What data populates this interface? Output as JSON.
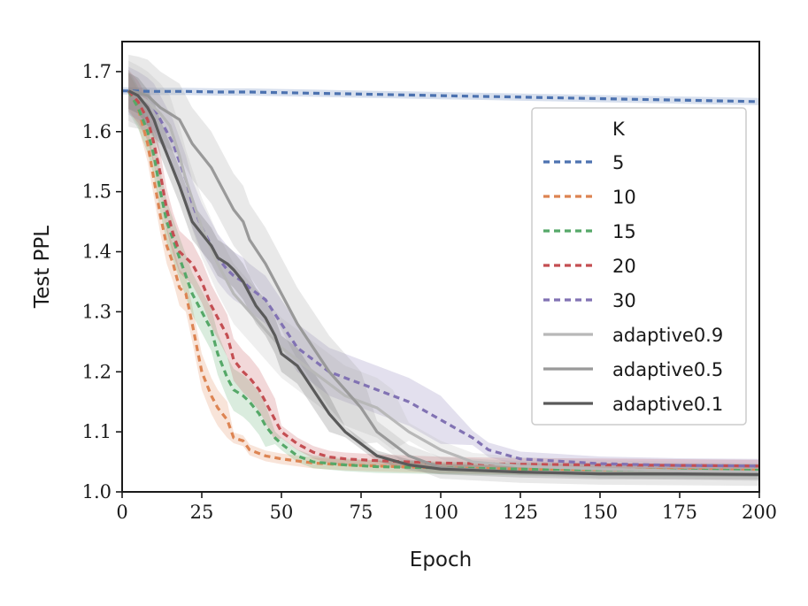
{
  "chart_data": {
    "type": "line",
    "xlabel": "Epoch",
    "ylabel": "Test PPL",
    "xlim": [
      0,
      200
    ],
    "ylim": [
      1.0,
      1.75
    ],
    "xticks": [
      0,
      25,
      50,
      75,
      100,
      125,
      150,
      175,
      200
    ],
    "xtick_labels": [
      "0",
      "25",
      "50",
      "75",
      "100",
      "125",
      "150",
      "175",
      "200"
    ],
    "yticks": [
      1.0,
      1.1,
      1.2,
      1.3,
      1.4,
      1.5,
      1.6,
      1.7
    ],
    "ytick_labels": [
      "1.0",
      "1.1",
      "1.2",
      "1.3",
      "1.4",
      "1.5",
      "1.6",
      "1.7"
    ],
    "legend": {
      "title": "K",
      "placement": "upper-right"
    },
    "series": [
      {
        "name": "5",
        "style": "dashed",
        "color": "#4c72b0",
        "x": [
          0,
          10,
          20,
          30,
          40,
          50,
          60,
          70,
          80,
          90,
          100,
          110,
          120,
          140,
          160,
          180,
          200
        ],
        "values": [
          1.668,
          1.667,
          1.667,
          1.666,
          1.666,
          1.665,
          1.664,
          1.663,
          1.662,
          1.661,
          1.66,
          1.659,
          1.658,
          1.656,
          1.654,
          1.652,
          1.65
        ],
        "band": 0.006
      },
      {
        "name": "10",
        "style": "dashed",
        "color": "#dd8452",
        "x": [
          2,
          5,
          8,
          10,
          12,
          14,
          16,
          18,
          20,
          22,
          25,
          28,
          30,
          33,
          35,
          38,
          40,
          45,
          50,
          60,
          70,
          80,
          100,
          125,
          150,
          175,
          200
        ],
        "values": [
          1.668,
          1.64,
          1.58,
          1.52,
          1.46,
          1.41,
          1.38,
          1.34,
          1.33,
          1.28,
          1.2,
          1.16,
          1.14,
          1.12,
          1.09,
          1.085,
          1.07,
          1.06,
          1.055,
          1.048,
          1.045,
          1.043,
          1.04,
          1.038,
          1.037,
          1.037,
          1.036
        ],
        "band": 0.03
      },
      {
        "name": "15",
        "style": "dashed",
        "color": "#55a868",
        "x": [
          2,
          5,
          8,
          10,
          12,
          14,
          16,
          18,
          20,
          22,
          25,
          28,
          30,
          33,
          35,
          38,
          40,
          43,
          45,
          48,
          50,
          55,
          60,
          70,
          80,
          100,
          125,
          150,
          175,
          200
        ],
        "values": [
          1.668,
          1.64,
          1.6,
          1.56,
          1.5,
          1.45,
          1.42,
          1.39,
          1.36,
          1.33,
          1.3,
          1.27,
          1.23,
          1.19,
          1.17,
          1.16,
          1.15,
          1.13,
          1.11,
          1.09,
          1.08,
          1.06,
          1.05,
          1.045,
          1.042,
          1.04,
          1.038,
          1.037,
          1.036,
          1.036
        ],
        "band": 0.035
      },
      {
        "name": "20",
        "style": "dashed",
        "color": "#c44e52",
        "x": [
          2,
          5,
          8,
          10,
          12,
          14,
          16,
          18,
          20,
          22,
          25,
          28,
          30,
          33,
          35,
          38,
          40,
          43,
          45,
          48,
          50,
          55,
          60,
          65,
          70,
          80,
          90,
          100,
          125,
          150,
          175,
          200
        ],
        "values": [
          1.668,
          1.65,
          1.62,
          1.58,
          1.53,
          1.47,
          1.43,
          1.4,
          1.39,
          1.38,
          1.35,
          1.31,
          1.29,
          1.26,
          1.22,
          1.2,
          1.19,
          1.17,
          1.15,
          1.12,
          1.1,
          1.08,
          1.066,
          1.058,
          1.055,
          1.052,
          1.05,
          1.048,
          1.046,
          1.045,
          1.044,
          1.043
        ],
        "band": 0.035
      },
      {
        "name": "30",
        "style": "dashed",
        "color": "#8172b3",
        "x": [
          2,
          5,
          8,
          10,
          12,
          14,
          16,
          18,
          20,
          22,
          25,
          28,
          30,
          33,
          35,
          38,
          40,
          45,
          50,
          55,
          60,
          65,
          70,
          75,
          80,
          90,
          100,
          110,
          115,
          125,
          150,
          175,
          200
        ],
        "values": [
          1.668,
          1.66,
          1.65,
          1.64,
          1.62,
          1.6,
          1.58,
          1.55,
          1.52,
          1.48,
          1.44,
          1.41,
          1.39,
          1.37,
          1.36,
          1.35,
          1.34,
          1.32,
          1.28,
          1.24,
          1.22,
          1.2,
          1.19,
          1.18,
          1.17,
          1.15,
          1.12,
          1.09,
          1.07,
          1.055,
          1.047,
          1.044,
          1.043
        ],
        "band": 0.04
      },
      {
        "name": "adaptive0.9",
        "style": "solid",
        "color": "#b8b8b8",
        "x": [
          2,
          5,
          8,
          10,
          12,
          15,
          18,
          20,
          25,
          30,
          35,
          40,
          45,
          50,
          55,
          60,
          65,
          70,
          75,
          80,
          85,
          90,
          95,
          100,
          105,
          110,
          125,
          150,
          175,
          200
        ],
        "values": [
          1.668,
          1.66,
          1.65,
          1.64,
          1.63,
          1.61,
          1.56,
          1.52,
          1.44,
          1.38,
          1.33,
          1.3,
          1.27,
          1.24,
          1.22,
          1.2,
          1.18,
          1.16,
          1.15,
          1.14,
          1.12,
          1.1,
          1.085,
          1.07,
          1.06,
          1.05,
          1.043,
          1.038,
          1.035,
          1.033
        ],
        "band": 0.05
      },
      {
        "name": "adaptive0.5",
        "style": "solid",
        "color": "#999999",
        "x": [
          2,
          5,
          8,
          10,
          12,
          15,
          18,
          20,
          22,
          25,
          28,
          30,
          33,
          35,
          38,
          40,
          45,
          50,
          55,
          60,
          65,
          70,
          75,
          80,
          90,
          100,
          125,
          150,
          175,
          200
        ],
        "values": [
          1.668,
          1.665,
          1.66,
          1.65,
          1.64,
          1.63,
          1.62,
          1.6,
          1.58,
          1.56,
          1.54,
          1.52,
          1.49,
          1.47,
          1.45,
          1.42,
          1.38,
          1.33,
          1.28,
          1.24,
          1.2,
          1.17,
          1.14,
          1.1,
          1.06,
          1.04,
          1.033,
          1.03,
          1.029,
          1.028
        ],
        "band": 0.06
      },
      {
        "name": "adaptive0.1",
        "style": "solid",
        "color": "#5a5a5a",
        "x": [
          2,
          5,
          8,
          10,
          12,
          15,
          18,
          20,
          22,
          25,
          28,
          30,
          33,
          35,
          38,
          40,
          42,
          45,
          48,
          50,
          55,
          60,
          65,
          70,
          75,
          80,
          90,
          100,
          125,
          150,
          175,
          200
        ],
        "values": [
          1.668,
          1.66,
          1.64,
          1.62,
          1.59,
          1.55,
          1.51,
          1.48,
          1.45,
          1.43,
          1.41,
          1.39,
          1.38,
          1.37,
          1.35,
          1.33,
          1.31,
          1.29,
          1.26,
          1.23,
          1.21,
          1.17,
          1.13,
          1.1,
          1.08,
          1.06,
          1.045,
          1.038,
          1.033,
          1.03,
          1.03,
          1.029
        ],
        "band": 0.03
      }
    ]
  }
}
